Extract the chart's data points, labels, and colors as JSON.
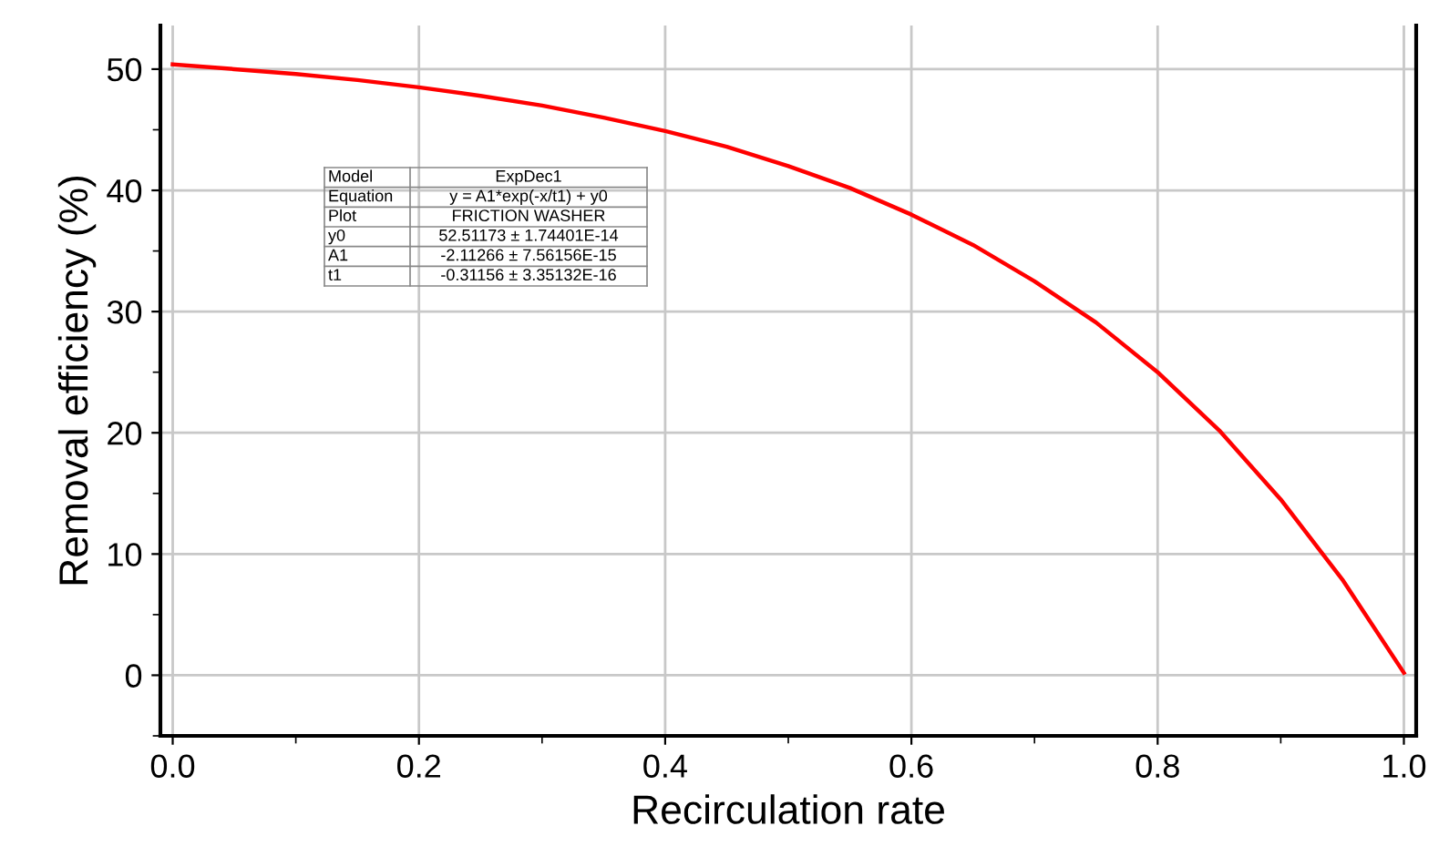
{
  "chart_data": {
    "type": "line",
    "xlabel": "Recirculation rate",
    "ylabel": "Removal efficiency (%)",
    "x": [
      0,
      0.05,
      0.1,
      0.15,
      0.2,
      0.25,
      0.3,
      0.35,
      0.4,
      0.45,
      0.5,
      0.55,
      0.6,
      0.65,
      0.7,
      0.75,
      0.8,
      0.85,
      0.9,
      0.95,
      1.0
    ],
    "series": [
      {
        "color": "#ff0000",
        "values": [
          50.4,
          50.0,
          49.6,
          49.1,
          48.5,
          47.8,
          47.0,
          46.0,
          44.9,
          43.6,
          42.0,
          40.2,
          38.0,
          35.5,
          32.5,
          29.1,
          25.0,
          20.2,
          14.5,
          7.9,
          0.2
        ]
      }
    ],
    "xlim": [
      -0.01,
      1.01
    ],
    "xticks": [
      {
        "value": 0,
        "label": "0.0"
      },
      0.2,
      0.4,
      0.6,
      0.8,
      {
        "value": 1,
        "label": "1.0"
      }
    ],
    "ylim": [
      -5,
      53.6
    ],
    "yticks": [
      0,
      10,
      20,
      30,
      40,
      50
    ],
    "grid": true,
    "marker": "none",
    "line_style": "solid",
    "annotations": [
      "Model",
      "ExpDec1",
      "Equation",
      "y = A1*exp(-x/t1) + y0",
      "Plot",
      "FRICTION WASHER",
      "y0",
      "52.51173 ± 1.74401E-14",
      "A1",
      "-2.11266 ± 7.56156E-15",
      "t1",
      "-0.31156 ± 3.35132E-16"
    ]
  }
}
